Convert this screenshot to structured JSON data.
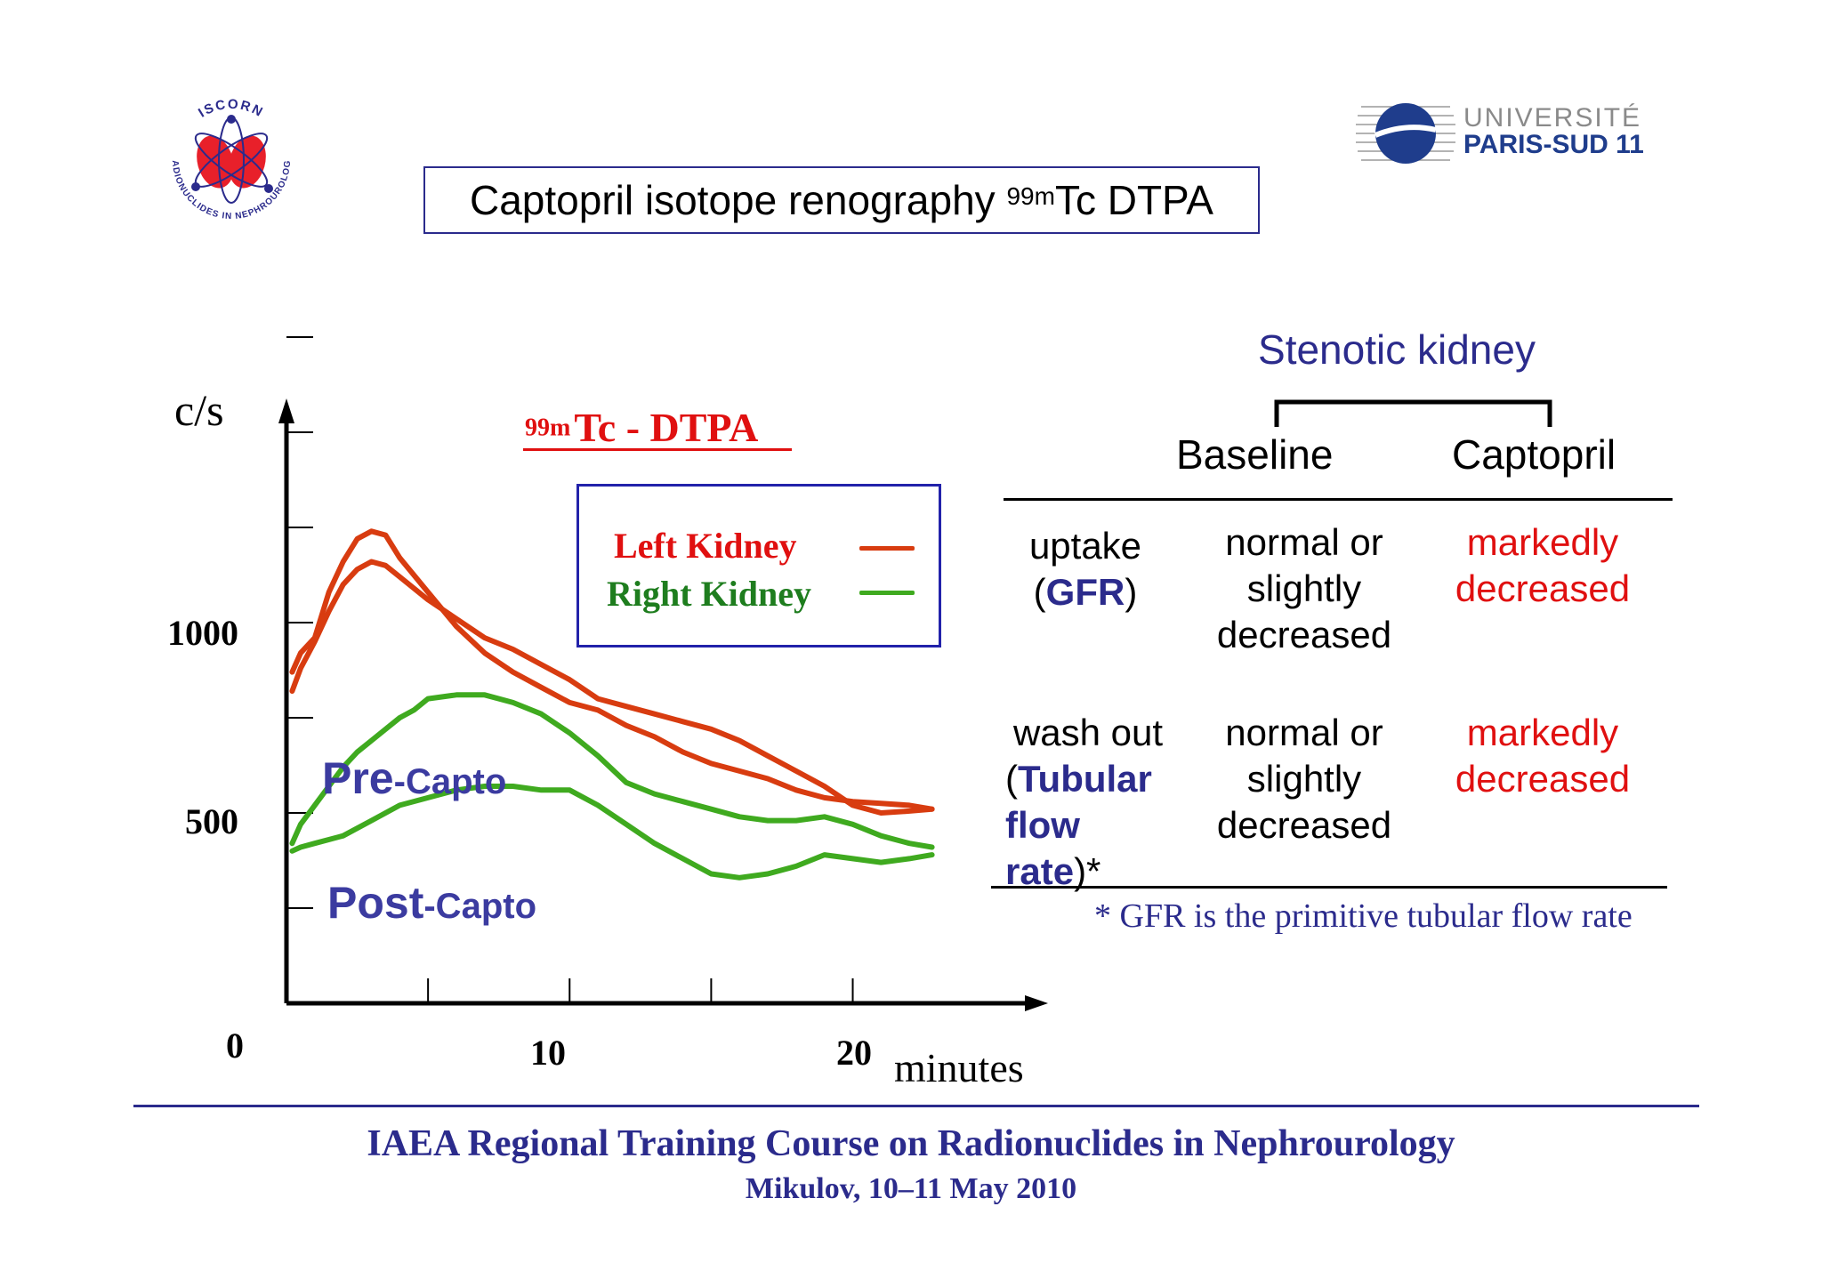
{
  "slide": {
    "title_main": "Captopril isotope renography ",
    "title_sup": "99m",
    "title_end": "Tc DTPA",
    "logo_left_text_top": "ISCORN",
    "logo_left_text_bottom": "RADIONUCLIDES IN NEPHROUROLOGY",
    "logo_right_line1": "UNIVERSITÉ",
    "logo_right_line2": "PARIS-SUD 11"
  },
  "chart_data": {
    "type": "line",
    "title_sup": "99m",
    "title": "Tc - DTPA",
    "ylabel": "c/s",
    "xlabel": "minutes",
    "y_ticks_labeled": [
      "1000",
      "500"
    ],
    "x_ticks_labeled": [
      "0",
      "10",
      "20"
    ],
    "x_range": [
      0,
      23
    ],
    "legend": [
      {
        "name": "Left Kidney",
        "color": "#d83c10"
      },
      {
        "name": "Right Kidney",
        "color": "#3faa1f"
      }
    ],
    "annotations": {
      "pre_big": "Pre",
      "pre_small": "-Capto",
      "post_big": "Post",
      "post_small": "-Capto"
    },
    "series": [
      {
        "name": "Left Kidney",
        "condition": "pre-captopril",
        "color": "#d83c10",
        "x": [
          0.2,
          0.5,
          1,
          1.5,
          2,
          2.5,
          3,
          3.5,
          4,
          5,
          6,
          7,
          8,
          9,
          10,
          11,
          12,
          13,
          14,
          15,
          16,
          17,
          18,
          19,
          20,
          21,
          22,
          22.8
        ],
        "y": [
          870,
          920,
          960,
          1080,
          1160,
          1220,
          1240,
          1230,
          1170,
          1080,
          990,
          920,
          870,
          830,
          790,
          770,
          730,
          700,
          660,
          630,
          610,
          590,
          560,
          540,
          530,
          525,
          520,
          510
        ]
      },
      {
        "name": "Left Kidney",
        "condition": "post-captopril",
        "color": "#d83c10",
        "x": [
          0.2,
          0.5,
          1,
          1.5,
          2,
          2.5,
          3,
          3.5,
          4,
          5,
          6,
          7,
          8,
          9,
          10,
          11,
          12,
          13,
          14,
          15,
          16,
          17,
          18,
          19,
          20,
          21,
          22,
          22.8
        ],
        "y": [
          820,
          880,
          950,
          1030,
          1100,
          1140,
          1160,
          1150,
          1120,
          1060,
          1010,
          960,
          930,
          890,
          850,
          800,
          780,
          760,
          740,
          720,
          690,
          650,
          610,
          570,
          520,
          500,
          505,
          510
        ]
      },
      {
        "name": "Right Kidney",
        "condition": "pre-captopril",
        "color": "#3faa1f",
        "x": [
          0.2,
          0.5,
          1,
          1.5,
          2,
          2.5,
          3,
          3.5,
          4,
          4.5,
          5,
          6,
          7,
          8,
          9,
          10,
          11,
          12,
          13,
          14,
          15,
          16,
          17,
          18,
          19,
          20,
          21,
          22,
          22.8
        ],
        "y": [
          420,
          470,
          520,
          570,
          620,
          660,
          690,
          720,
          750,
          770,
          800,
          810,
          810,
          790,
          760,
          710,
          650,
          580,
          550,
          530,
          510,
          490,
          480,
          480,
          490,
          470,
          440,
          420,
          410
        ]
      },
      {
        "name": "Right Kidney",
        "condition": "post-captopril",
        "color": "#3faa1f",
        "x": [
          0.2,
          0.5,
          1,
          2,
          3,
          4,
          5,
          6,
          7,
          8,
          9,
          10,
          11,
          12,
          13,
          14,
          15,
          16,
          17,
          18,
          19,
          20,
          21,
          22,
          22.8
        ],
        "y": [
          400,
          410,
          420,
          440,
          480,
          520,
          540,
          560,
          570,
          570,
          560,
          560,
          520,
          470,
          420,
          380,
          340,
          330,
          340,
          360,
          390,
          380,
          370,
          380,
          390
        ]
      }
    ]
  },
  "table": {
    "heading": "Stenotic kidney",
    "col_baseline": "Baseline",
    "col_captopril": "Captopril",
    "row1_label_1": "uptake",
    "row1_label_2_open": "(",
    "row1_label_2_bold": "GFR",
    "row1_label_2_close": ")",
    "row1_baseline": [
      "normal or",
      "slightly",
      "decreased"
    ],
    "row1_captopril": [
      "markedly",
      "decreased"
    ],
    "row2_label_1": "wash out",
    "row2_label_2_open": "(",
    "row2_label_2_bold": "Tubular",
    "row2_label_3_bold": "flow rate",
    "row2_label_3_close": ")*",
    "row2_baseline": [
      "normal or",
      "slightly",
      "decreased"
    ],
    "row2_captopril": [
      "markedly",
      "decreased"
    ],
    "footnote": "* GFR is the primitive tubular flow rate"
  },
  "footer": {
    "line1": "IAEA Regional Training Course on Radionuclides in Nephrourology",
    "line2": "Mikulov, 10–11 May 2010"
  },
  "colors": {
    "navy": "#2b2b8c",
    "red_text": "#e01010",
    "left_kidney": "#d83c10",
    "right_kidney": "#3faa1f"
  }
}
